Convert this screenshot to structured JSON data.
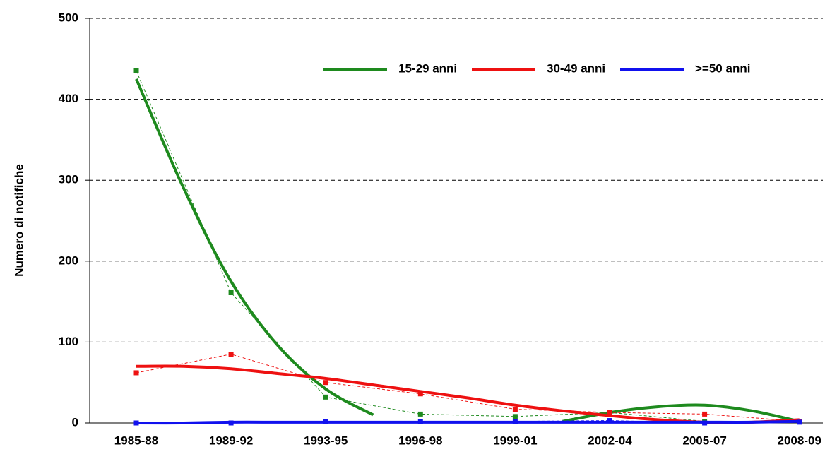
{
  "chart_data": {
    "type": "line",
    "y_label": "Numero di notifiche",
    "categories": [
      "1985-88",
      "1989-92",
      "1993-95",
      "1996-98",
      "1999-01",
      "2002-04",
      "2005-07",
      "2008-09"
    ],
    "ylim": [
      0,
      500
    ],
    "yticks": [
      0,
      100,
      200,
      300,
      400,
      500
    ],
    "grid": true,
    "trend_x": [
      0,
      0.5,
      1,
      1.5,
      2,
      2.5,
      3,
      3.5,
      4,
      4.5,
      5,
      5.5,
      6,
      6.5,
      7
    ],
    "series": [
      {
        "name": "15-29 anni",
        "color": "#1e8a1e",
        "values": [
          435,
          161,
          32,
          11,
          8,
          13,
          2,
          2
        ],
        "trend": [
          425,
          290,
          175,
          95,
          42,
          10,
          null,
          null,
          null,
          2,
          13,
          20,
          22,
          15,
          2
        ]
      },
      {
        "name": "30-49 anni",
        "color": "#ee1111",
        "values": [
          62,
          85,
          50,
          36,
          17,
          13,
          11,
          2
        ],
        "trend": [
          70,
          70,
          67,
          61,
          55,
          47,
          39,
          31,
          22,
          15,
          9,
          4,
          1,
          1,
          4
        ]
      },
      {
        "name": ">=50 anni",
        "color": "#1111ee",
        "values": [
          0,
          0,
          2,
          2,
          2,
          3,
          0,
          1
        ],
        "trend": [
          0,
          0,
          1,
          1,
          1,
          1,
          1,
          1,
          1,
          1,
          1,
          1,
          1,
          1,
          2
        ]
      }
    ]
  }
}
